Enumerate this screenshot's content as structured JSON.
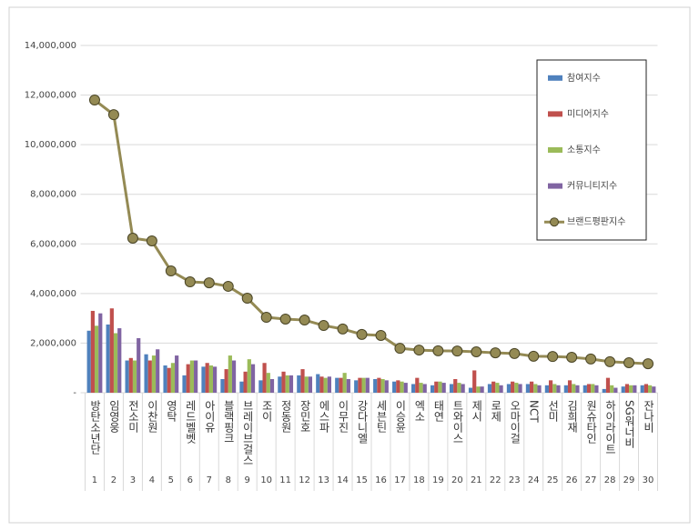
{
  "chart_data": {
    "type": "bar",
    "categories": [
      "방탄소년단",
      "임영웅",
      "전소미",
      "이찬원",
      "영탁",
      "레드벨벳",
      "아이유",
      "블랙핑크",
      "브레이브걸스",
      "조이",
      "정동원",
      "장민호",
      "에스파",
      "이무진",
      "강다니엘",
      "세븐틴",
      "이승윤",
      "엑소",
      "태연",
      "트와이스",
      "제시",
      "로제",
      "오마이걸",
      "NCT",
      "선미",
      "김희재",
      "원슈타인",
      "하이라이트",
      "SG워너비",
      "잔나비"
    ],
    "ranks": [
      1,
      2,
      3,
      4,
      5,
      6,
      7,
      8,
      9,
      10,
      11,
      12,
      13,
      14,
      15,
      16,
      17,
      18,
      19,
      20,
      21,
      22,
      23,
      24,
      25,
      26,
      27,
      28,
      29,
      30
    ],
    "series": [
      {
        "name": "참여지수",
        "type": "bar",
        "color": "#4f81bd",
        "values": [
          2500000,
          2750000,
          1300000,
          1550000,
          1100000,
          700000,
          1050000,
          550000,
          450000,
          500000,
          650000,
          700000,
          750000,
          600000,
          500000,
          550000,
          450000,
          350000,
          300000,
          350000,
          200000,
          350000,
          350000,
          350000,
          300000,
          300000,
          300000,
          150000,
          250000,
          300000
        ]
      },
      {
        "name": "미디어지수",
        "type": "bar",
        "color": "#c0504d",
        "values": [
          3300000,
          3400000,
          1400000,
          1300000,
          1000000,
          1150000,
          1200000,
          950000,
          850000,
          1200000,
          850000,
          950000,
          650000,
          600000,
          600000,
          600000,
          500000,
          600000,
          450000,
          550000,
          900000,
          450000,
          450000,
          450000,
          500000,
          500000,
          350000,
          600000,
          350000,
          350000
        ]
      },
      {
        "name": "소통지수",
        "type": "bar",
        "color": "#9bbb59",
        "values": [
          2700000,
          2400000,
          1300000,
          1500000,
          1200000,
          1300000,
          1100000,
          1500000,
          1350000,
          800000,
          700000,
          650000,
          600000,
          800000,
          600000,
          550000,
          450000,
          400000,
          450000,
          400000,
          250000,
          400000,
          400000,
          350000,
          350000,
          350000,
          350000,
          300000,
          300000,
          300000
        ]
      },
      {
        "name": "커뮤니티지수",
        "type": "bar",
        "color": "#8064a2",
        "values": [
          3200000,
          2600000,
          2200000,
          1750000,
          1500000,
          1300000,
          1050000,
          1300000,
          1150000,
          550000,
          700000,
          650000,
          650000,
          550000,
          600000,
          500000,
          400000,
          350000,
          400000,
          350000,
          250000,
          300000,
          350000,
          300000,
          300000,
          300000,
          300000,
          200000,
          300000,
          250000
        ]
      },
      {
        "name": "브랜드평판지수",
        "type": "line",
        "color": "#948a54",
        "values": [
          11800000,
          11210000,
          6230000,
          6120000,
          4910000,
          4470000,
          4430000,
          4290000,
          3810000,
          3040000,
          2970000,
          2930000,
          2710000,
          2570000,
          2350000,
          2310000,
          1790000,
          1720000,
          1690000,
          1680000,
          1650000,
          1610000,
          1580000,
          1470000,
          1460000,
          1430000,
          1360000,
          1250000,
          1210000,
          1170000
        ]
      }
    ],
    "ylim": [
      0,
      14000000
    ],
    "yticks": [
      {
        "value": 0,
        "label": "-"
      },
      {
        "value": 2000000,
        "label": "2,000,000"
      },
      {
        "value": 4000000,
        "label": "4,000,000"
      },
      {
        "value": 6000000,
        "label": "6,000,000"
      },
      {
        "value": 8000000,
        "label": "8,000,000"
      },
      {
        "value": 10000000,
        "label": "10,000,000"
      },
      {
        "value": 12000000,
        "label": "12,000,000"
      },
      {
        "value": 14000000,
        "label": "14,000,000"
      }
    ],
    "grid": true,
    "legend": "right"
  }
}
